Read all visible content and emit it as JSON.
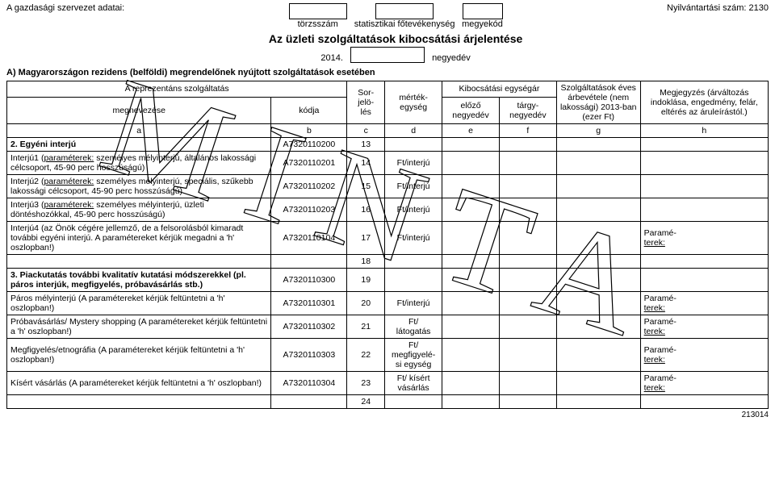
{
  "header": {
    "org_label": "A gazdasági szervezet adatai:",
    "box1_label": "törzsszám",
    "box2_label": "statisztikai főtevékenység",
    "box3_label": "megyekód",
    "reg_label": "Nyilvántartási szám: 2130",
    "main_title": "Az üzleti szolgáltatások kibocsátási árjelentése",
    "year": "2014.",
    "quarter_label": "negyedév",
    "section_a": "A) Magyarországon rezidens (belföldi) megrendelőnek nyújtott szolgáltatások esetében"
  },
  "thead": {
    "col_ab_top": "A reprezentáns szolgáltatás",
    "col_a_sub": "megnevezése",
    "col_b_sub": "kódja",
    "col_c": "Sor-\njelö-\nlés",
    "col_d": "mérték-\negység",
    "col_ef_top": "Kibocsátási egységár",
    "col_e_sub": "előző\nnegyedév",
    "col_f_sub": "tárgy-\nnegyedév",
    "col_g": "Szolgáltatások éves árbevétele (nem lakossági) 2013-ban (ezer Ft)",
    "col_h": "Megjegyzés (árváltozás indoklása, engedmény, felár, eltérés az áruleírástól.)",
    "letters": [
      "a",
      "b",
      "c",
      "d",
      "e",
      "f",
      "g",
      "h"
    ]
  },
  "rows": [
    {
      "type": "bold",
      "a_pre": "2. Egyéni interjú",
      "a_u": "",
      "a_post": "",
      "b": "A7320110200",
      "c": "13",
      "d": "",
      "e": "",
      "f": "",
      "g": "",
      "h_pre": "",
      "h_after": ""
    },
    {
      "type": "normal",
      "a_pre": "Interjú1 (",
      "a_u": "paraméterek:",
      "a_post": " személyes mélyinterjú, általános lakossági célcsoport, 45-90 perc hosszúságú)",
      "b": "A7320110201",
      "c": "14",
      "d": "Ft/interjú",
      "e": "",
      "f": "",
      "g": "",
      "h_pre": "",
      "h_after": ""
    },
    {
      "type": "normal",
      "a_pre": "Interjú2 (",
      "a_u": "paraméterek:",
      "a_post": " személyes mélyinterjú, speciális, szűkebb lakossági célcsoport, 45-90 perc hosszúságú)",
      "b": "A7320110202",
      "c": "15",
      "d": "Ft/interjú",
      "e": "",
      "f": "",
      "g": "",
      "h_pre": "",
      "h_after": ""
    },
    {
      "type": "normal",
      "a_pre": "Interjú3 (",
      "a_u": "paraméterek:",
      "a_post": " személyes mélyinterjú, üzleti döntéshozókkal, 45-90 perc hosszúságú)",
      "b": "A7320110203",
      "c": "16",
      "d": "Ft/interjú",
      "e": "",
      "f": "",
      "g": "",
      "h_pre": "",
      "h_after": ""
    },
    {
      "type": "normal",
      "a_pre": "Interjú4 (az Önök cégére jellemző, de a felsorolásból kimaradt további egyéni interjú. A paramétereket kérjük megadni a 'h' oszlopban!)",
      "a_u": "",
      "a_post": "",
      "b": "A7320110104",
      "c": "17",
      "d": "Ft/interjú",
      "e": "",
      "f": "",
      "g": "",
      "h_pre": "Paramé-",
      "h_after": "terek:"
    },
    {
      "type": "blank",
      "a_pre": "",
      "a_u": "",
      "a_post": "",
      "b": "",
      "c": "18",
      "d": "",
      "e": "",
      "f": "",
      "g": "",
      "h_pre": "",
      "h_after": ""
    },
    {
      "type": "bold",
      "a_pre": "3. Piackutatás további kvalitatív kutatási módszerekkel (pl. páros interjúk, megfigyelés, próbavásárlás stb.)",
      "a_u": "",
      "a_post": "",
      "b": "A7320110300",
      "c": "19",
      "d": "",
      "e": "",
      "f": "",
      "g": "",
      "h_pre": "",
      "h_after": ""
    },
    {
      "type": "normal",
      "a_pre": "Páros mélyinterjú (A paramétereket kérjük feltüntetni a 'h' oszlopban!)",
      "a_u": "",
      "a_post": "",
      "b": "A7320110301",
      "c": "20",
      "d": "Ft/interjú",
      "e": "",
      "f": "",
      "g": "",
      "h_pre": "Paramé-",
      "h_after": "terek:"
    },
    {
      "type": "normal",
      "a_pre": "Próbavásárlás/ Mystery shopping (A paramétereket kérjük feltüntetni a 'h' oszlopban!)",
      "a_u": "",
      "a_post": "",
      "b": "A7320110302",
      "c": "21",
      "d": "Ft/\nlátogatás",
      "e": "",
      "f": "",
      "g": "",
      "h_pre": "Paramé-",
      "h_after": "terek:"
    },
    {
      "type": "normal",
      "a_pre": "Megfigyelés/etnográfia (A paramétereket kérjük feltüntetni a 'h' oszlopban!)",
      "a_u": "",
      "a_post": "",
      "b": "A7320110303",
      "c": "22",
      "d": "Ft/\nmegfigyelé-\nsi egység",
      "e": "",
      "f": "",
      "g": "",
      "h_pre": "Paramé-",
      "h_after": "terek:"
    },
    {
      "type": "normal",
      "a_pre": "Kísért vásárlás (A paramétereket kérjük feltüntetni a 'h' oszlopban!)",
      "a_u": "",
      "a_post": "",
      "b": "A7320110304",
      "c": "23",
      "d": "Ft/ kísért\nvásárlás",
      "e": "",
      "f": "",
      "g": "",
      "h_pre": "Paramé-",
      "h_after": "terek:"
    },
    {
      "type": "blank",
      "a_pre": "",
      "a_u": "",
      "a_post": "",
      "b": "",
      "c": "24",
      "d": "",
      "e": "",
      "f": "",
      "g": "",
      "h_pre": "",
      "h_after": ""
    }
  ],
  "watermark": "MINTA",
  "footer": "213014"
}
